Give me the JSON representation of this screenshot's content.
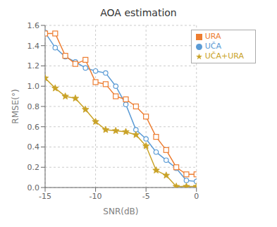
{
  "chart_data": {
    "type": "line",
    "title": "AOA estimation",
    "xlabel": "SNR(dB)",
    "ylabel": "RMSE(°)",
    "x": [
      -15,
      -14,
      -13,
      -12,
      -11,
      -10,
      -9,
      -8,
      -7,
      -6,
      -5,
      -4,
      -3,
      -2,
      -1,
      0
    ],
    "series": [
      {
        "name": "UČA",
        "color": "#5b9bd5",
        "marker": "circle",
        "values": [
          1.53,
          1.38,
          1.29,
          1.24,
          1.18,
          1.15,
          1.13,
          1.0,
          0.82,
          0.57,
          0.48,
          0.35,
          0.27,
          0.19,
          0.07,
          0.06
        ]
      },
      {
        "name": "URA",
        "color": "#ed7d31",
        "marker": "square",
        "values": [
          1.52,
          1.52,
          1.3,
          1.22,
          1.26,
          1.04,
          1.02,
          0.9,
          0.87,
          0.8,
          0.7,
          0.5,
          0.37,
          0.2,
          0.13,
          0.13
        ]
      },
      {
        "name": "UČA+URA",
        "color": "#c9a227",
        "marker": "star",
        "values": [
          1.08,
          0.98,
          0.9,
          0.88,
          0.77,
          0.65,
          0.57,
          0.56,
          0.55,
          0.52,
          0.41,
          0.17,
          0.12,
          0.01,
          0.01,
          0.01
        ]
      }
    ],
    "xlim": [
      -15,
      0
    ],
    "ylim": [
      0,
      1.6
    ],
    "xticks": [
      -15,
      -10,
      -5,
      0
    ],
    "yticks": [
      {
        "value": 0,
        "label": "0.0"
      },
      0.2,
      0.4,
      0.6,
      0.8,
      {
        "value": 1.0,
        "label": "1.0"
      },
      1.2,
      1.4,
      1.6
    ],
    "grid": true,
    "legend": "upper right"
  }
}
